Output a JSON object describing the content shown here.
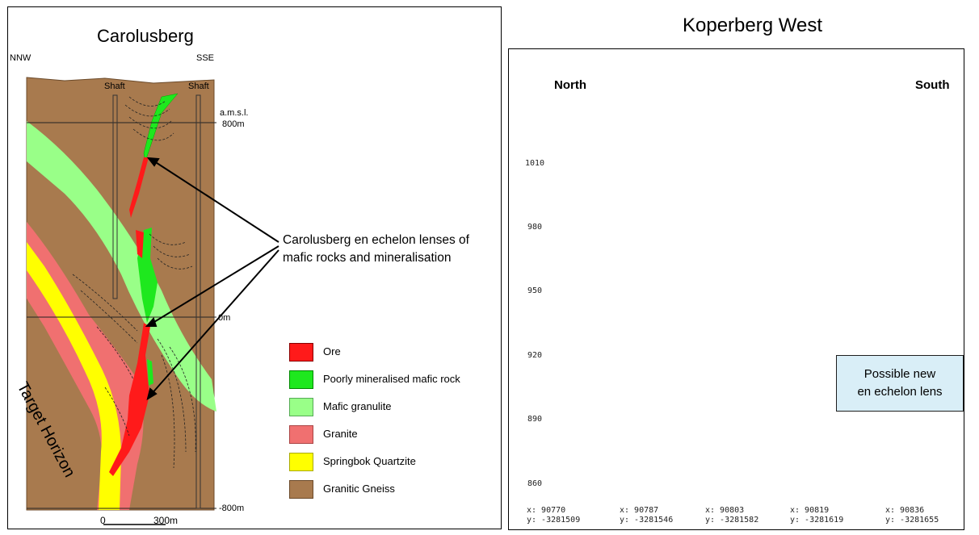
{
  "left": {
    "title": "Carolusberg",
    "dir_left": "NNW",
    "dir_right": "SSE",
    "shaft1": "Shaft",
    "shaft2": "Shaft",
    "amsl": "a.m.s.l.",
    "elev_800": "800m",
    "elev_0": "0m",
    "elev_neg800": "-800m",
    "scale_0": "0",
    "scale_300": "300m",
    "target_label": "Target Horizon",
    "annotation_line1": "Carolusberg en echelon lenses of",
    "annotation_line2": "mafic rocks and mineralisation",
    "legend": [
      {
        "label": "Ore",
        "color": "#ff1a1a"
      },
      {
        "label": "Poorly mineralised mafic rock",
        "color": "#1ee81e"
      },
      {
        "label": "Mafic granulite",
        "color": "#99ff88"
      },
      {
        "label": "Granite",
        "color": "#f07070"
      },
      {
        "label": "Springbok Quartzite",
        "color": "#ffff00"
      },
      {
        "label": "Granitic Gneiss",
        "color": "#a87a4e"
      }
    ]
  },
  "right": {
    "title": "Koperberg West",
    "north": "North",
    "south": "South",
    "y_ticks": [
      "1010",
      "980",
      "950",
      "920",
      "890",
      "860"
    ],
    "x_labels": [
      {
        "x": "x: 90770",
        "y": "y: -3281509"
      },
      {
        "x": "x: 90787",
        "y": "y: -3281546"
      },
      {
        "x": "x: 90803",
        "y": "y: -3281582"
      },
      {
        "x": "x: 90819",
        "y": "y: -3281619"
      },
      {
        "x": "x: 90836",
        "y": "y: -3281655"
      }
    ],
    "callout_line1": "Possible new",
    "callout_line2": "en echelon lens"
  }
}
